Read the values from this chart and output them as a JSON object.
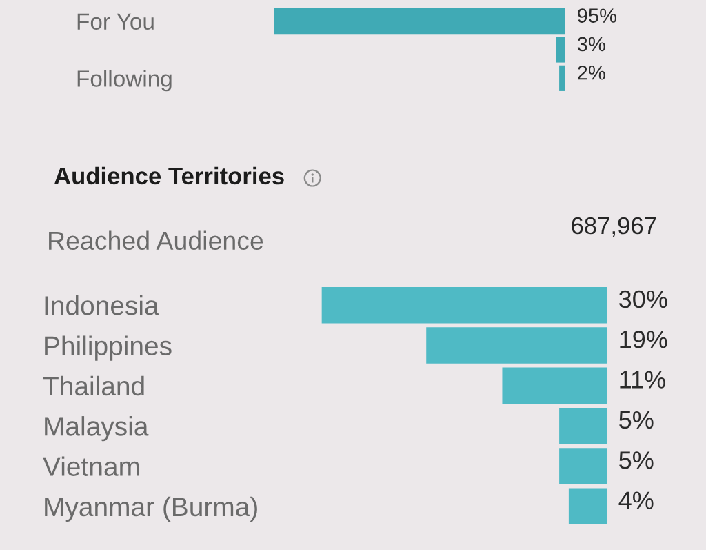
{
  "chart_data": [
    {
      "type": "bar",
      "orientation": "horizontal",
      "categories": [
        "For You",
        null,
        "Following"
      ],
      "values": [
        95,
        3,
        2
      ],
      "value_labels": [
        "95%",
        "3%",
        "2%"
      ],
      "color": "#40aab5",
      "tick_labels": "y"
    },
    {
      "type": "bar",
      "orientation": "horizontal",
      "title": "Audience Territories",
      "annotations": [
        "Reached Audience",
        "687,967"
      ],
      "categories": [
        "Indonesia",
        "Philippines",
        "Thailand",
        "Malaysia",
        "Vietnam",
        "Myanmar (Burma)"
      ],
      "values": [
        30,
        19,
        11,
        5,
        5,
        4
      ],
      "value_labels": [
        "30%",
        "19%",
        "11%",
        "5%",
        "5%",
        "4%"
      ],
      "color": "#4fbac5",
      "tick_labels": "y"
    }
  ]
}
